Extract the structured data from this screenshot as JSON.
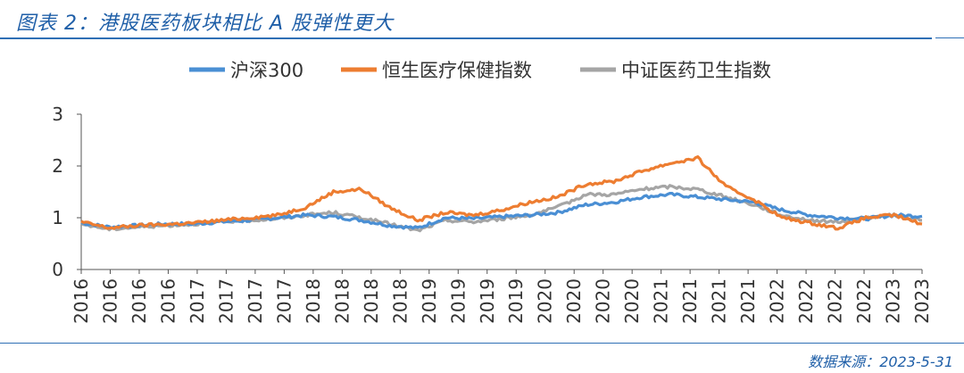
{
  "header": {
    "title": "图表 2：港股医药板块相比 A 股弹性更大"
  },
  "footer": {
    "source": "数据来源：2023-5-31"
  },
  "colors": {
    "csi300": "#4a8fd4",
    "hs_health": "#ed7d31",
    "csi_health": "#a5a5a5",
    "accent": "#2f6fb5"
  },
  "chart_data": {
    "type": "line",
    "title": "图表 2：港股医药板块相比 A 股弹性更大",
    "xlabel": "",
    "ylabel": "",
    "ylim": [
      0,
      3
    ],
    "yticks": [
      "0",
      "1",
      "2",
      "3"
    ],
    "xtick_labels": [
      "2016",
      "2016",
      "2016",
      "2016",
      "2017",
      "2017",
      "2017",
      "2017",
      "2018",
      "2018",
      "2018",
      "2018",
      "2019",
      "2019",
      "2019",
      "2019",
      "2020",
      "2020",
      "2020",
      "2020",
      "2021",
      "2021",
      "2021",
      "2021",
      "2022",
      "2022",
      "2022",
      "2022",
      "2023",
      "2023"
    ],
    "grid": false,
    "legend_position": "top",
    "x": [
      "2016-01",
      "2016-04",
      "2016-07",
      "2016-10",
      "2017-01",
      "2017-04",
      "2017-07",
      "2017-10",
      "2018-01",
      "2018-04",
      "2018-07",
      "2018-10",
      "2019-01",
      "2019-04",
      "2019-07",
      "2019-10",
      "2020-01",
      "2020-04",
      "2020-07",
      "2020-10",
      "2021-01",
      "2021-04",
      "2021-07",
      "2021-10",
      "2022-01",
      "2022-04",
      "2022-07",
      "2022-10",
      "2023-01",
      "2023-04",
      "2023-05"
    ],
    "series": [
      {
        "name": "沪深300",
        "values": [
          0.9,
          0.82,
          0.85,
          0.88,
          0.88,
          0.92,
          0.95,
          1.0,
          1.05,
          1.02,
          0.95,
          0.85,
          0.8,
          1.0,
          0.98,
          1.02,
          1.05,
          1.1,
          1.25,
          1.3,
          1.4,
          1.45,
          1.4,
          1.35,
          1.3,
          1.15,
          1.05,
          1.0,
          0.98,
          1.05,
          1.03
        ]
      },
      {
        "name": "恒生医疗保健指数",
        "values": [
          0.92,
          0.8,
          0.85,
          0.87,
          0.9,
          0.95,
          1.0,
          1.05,
          1.2,
          1.5,
          1.55,
          1.2,
          0.95,
          1.1,
          1.05,
          1.15,
          1.3,
          1.4,
          1.65,
          1.7,
          1.9,
          2.05,
          2.15,
          1.6,
          1.35,
          1.0,
          0.9,
          0.8,
          1.0,
          1.05,
          0.88
        ]
      },
      {
        "name": "中证医药卫生指数",
        "values": [
          0.88,
          0.78,
          0.82,
          0.85,
          0.88,
          0.92,
          0.95,
          0.98,
          1.05,
          1.1,
          1.0,
          0.88,
          0.75,
          0.95,
          0.92,
          0.98,
          1.05,
          1.2,
          1.45,
          1.45,
          1.55,
          1.6,
          1.55,
          1.4,
          1.25,
          1.05,
          0.95,
          0.92,
          1.0,
          1.05,
          0.95
        ]
      }
    ]
  }
}
